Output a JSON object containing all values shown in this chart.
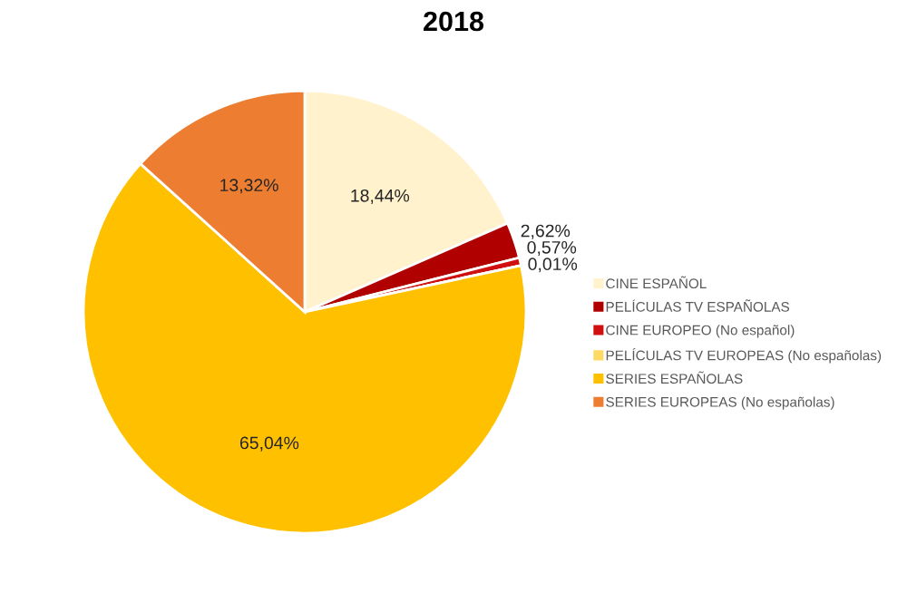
{
  "chart_data": {
    "type": "pie",
    "title": "2018",
    "categories": [
      "CINE ESPAÑOL",
      "PELÍCULAS TV ESPAÑOLAS",
      "CINE EUROPEO (No español)",
      "PELÍCULAS TV EUROPEAS (No españolas)",
      "SERIES ESPAÑOLAS",
      "SERIES EUROPEAS (No españolas)"
    ],
    "values": [
      18.44,
      2.62,
      0.57,
      0.01,
      65.04,
      13.32
    ],
    "value_labels": [
      "18,44%",
      "2,62%",
      "0,57%",
      "0,01%",
      "65,04%",
      "13,32%"
    ],
    "colors": [
      "#fff2cc",
      "#b00000",
      "#d01010",
      "#ffd966",
      "#ffc000",
      "#ed7d31"
    ],
    "legend": "right"
  }
}
